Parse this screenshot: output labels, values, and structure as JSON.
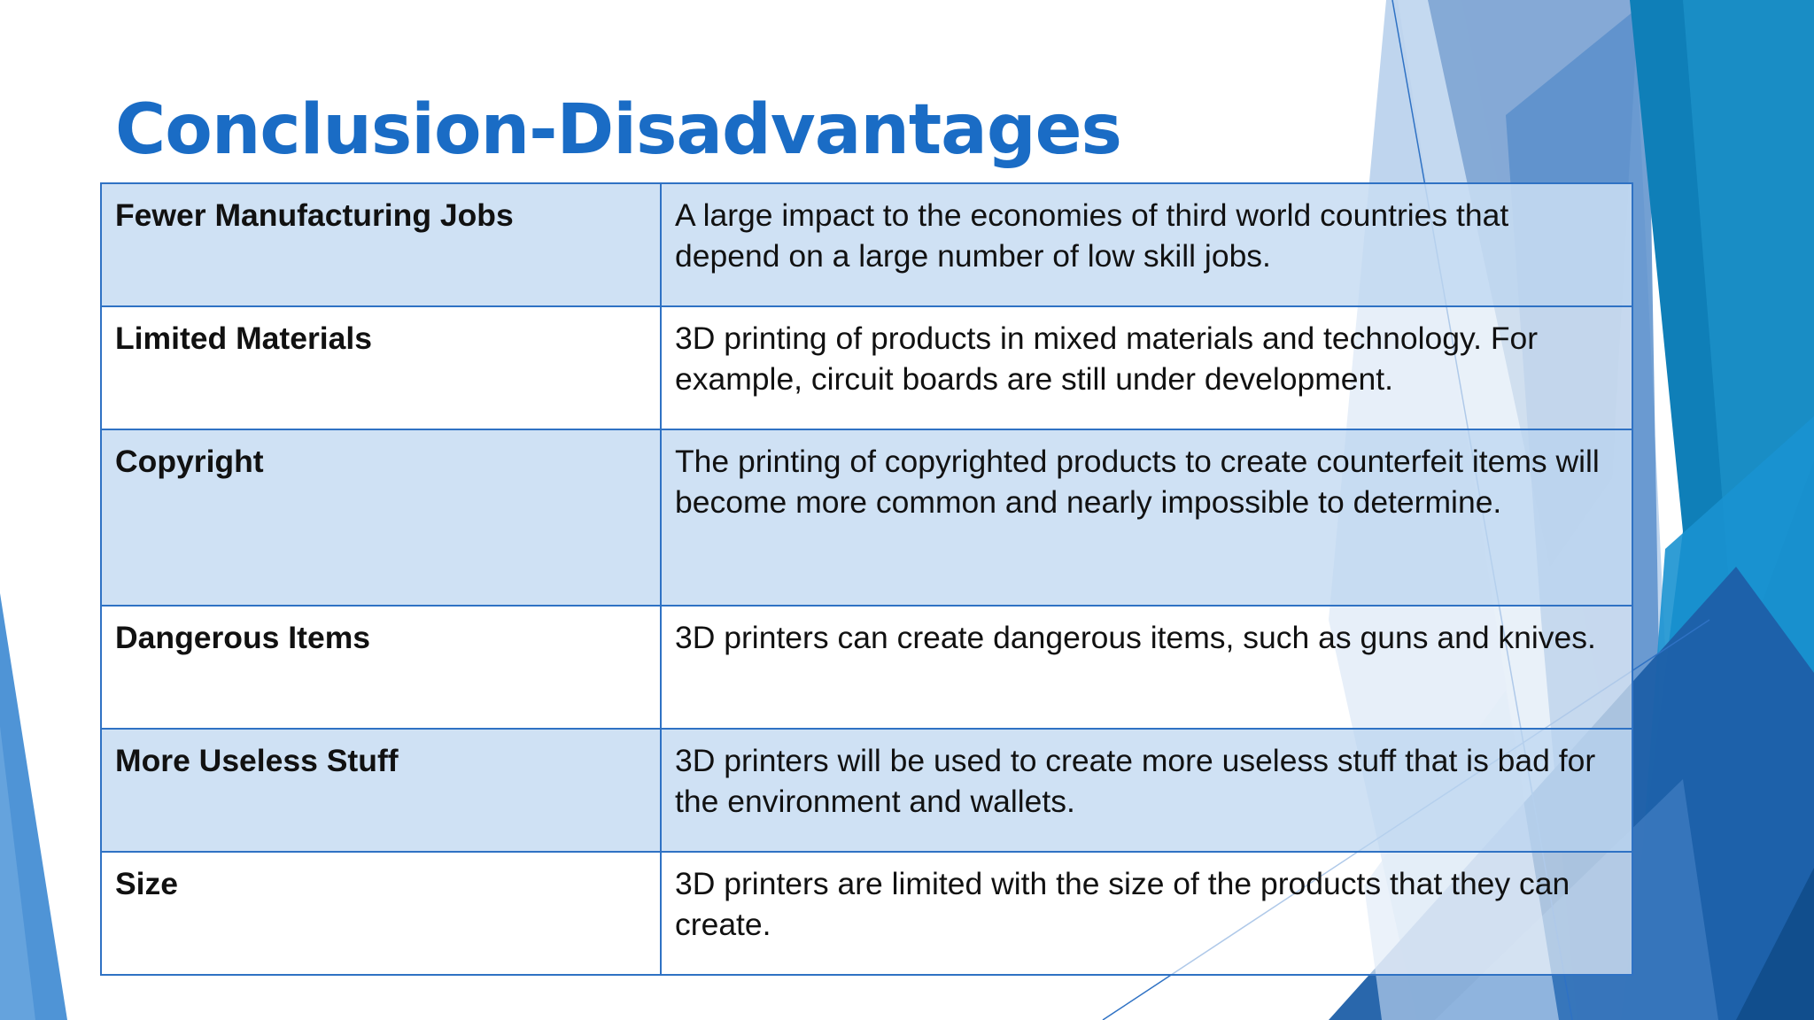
{
  "slide": {
    "title": "Conclusion-Disadvantages"
  },
  "table": {
    "rows": [
      {
        "term": "Fewer Manufacturing Jobs",
        "description": "A large impact to the economies of third world countries that depend on a large number of low skill jobs."
      },
      {
        "term": "Limited Materials",
        "description": "3D printing of products in mixed materials and technology. For example, circuit boards are still under development."
      },
      {
        "term": "Copyright",
        "description": "The printing of copyrighted products to create counterfeit items will become more common and nearly impossible to determine."
      },
      {
        "term": "Dangerous Items",
        "description": "3D printers can create dangerous items, such as guns and knives."
      },
      {
        "term": "More Useless Stuff",
        "description": "3D printers will be used to create more useless stuff that is bad for the environment and wallets."
      },
      {
        "term": "Size",
        "description": "3D printers are limited with the size of the products that they can create."
      }
    ]
  },
  "theme": {
    "title_color": "#1a6cc5",
    "border_color": "#2f72c4",
    "band_color": "#c8ddf2",
    "accent_dark": "#0b5fa3",
    "accent_mid": "#2a86c8",
    "accent_light": "#8fb8e3"
  }
}
